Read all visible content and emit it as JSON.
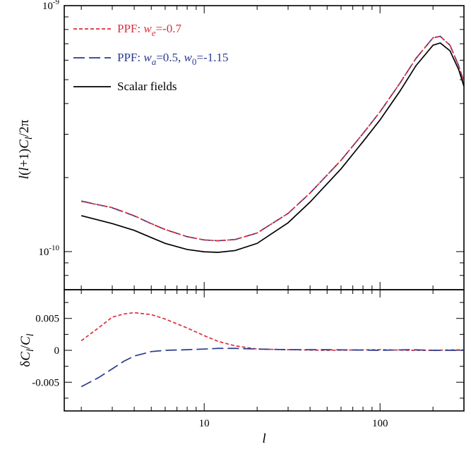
{
  "colors": {
    "ppf_we": "#dc2f3c",
    "ppf_wa_w0": "#2b3a8f",
    "scalar_fields": "#000000"
  },
  "chart_data": [
    {
      "type": "line",
      "xlabel": "l",
      "ylabel": "l(l+1)C_l/2π",
      "xscale": "log",
      "yscale": "log",
      "xlim": [
        1.6,
        300
      ],
      "ylim": [
        7e-11,
        1e-09
      ],
      "y_tick_labels": [
        {
          "value": 1e-09,
          "base": "10",
          "exp": "-9"
        },
        {
          "value": 1e-10,
          "base": "10",
          "exp": "-10"
        }
      ],
      "legend": {
        "placement": "top-left",
        "entries": [
          {
            "series": "ppf_we",
            "prefix": "PPF: ",
            "parts": [
              {
                "t": "w",
                "i": true
              },
              {
                "t": "e",
                "sub": true,
                "i": true
              },
              {
                "t": "=-0.7"
              }
            ]
          },
          {
            "series": "ppf_wa_w0",
            "prefix": "PPF: ",
            "parts": [
              {
                "t": "w",
                "i": true
              },
              {
                "t": "a",
                "sub": true,
                "i": true
              },
              {
                "t": "=0.5, "
              },
              {
                "t": "w",
                "i": true
              },
              {
                "t": "0",
                "sub": true
              },
              {
                "t": "=-1.15"
              }
            ]
          },
          {
            "series": "scalar_fields",
            "prefix": "Scalar fields",
            "parts": []
          }
        ]
      },
      "series": [
        {
          "key": "ppf_we",
          "name": "PPF: w_e=-0.7",
          "style": "short-dash",
          "points": [
            [
              2,
              1.6e-10
            ],
            [
              3,
              1.51e-10
            ],
            [
              4,
              1.4e-10
            ],
            [
              5,
              1.3e-10
            ],
            [
              6,
              1.23e-10
            ],
            [
              8,
              1.15e-10
            ],
            [
              10,
              1.115e-10
            ],
            [
              12,
              1.107e-10
            ],
            [
              15,
              1.12e-10
            ],
            [
              20,
              1.19e-10
            ],
            [
              30,
              1.43e-10
            ],
            [
              40,
              1.73e-10
            ],
            [
              60,
              2.35e-10
            ],
            [
              80,
              3.02e-10
            ],
            [
              100,
              3.7e-10
            ],
            [
              130,
              4.85e-10
            ],
            [
              160,
              6.1e-10
            ],
            [
              200,
              7.4e-10
            ],
            [
              220,
              7.5e-10
            ],
            [
              250,
              6.9e-10
            ],
            [
              280,
              5.7e-10
            ],
            [
              300,
              4.9e-10
            ]
          ]
        },
        {
          "key": "ppf_wa_w0",
          "name": "PPF: w_a=0.5, w_0=-1.15",
          "style": "long-dash",
          "points": [
            [
              2,
              1.605e-10
            ],
            [
              3,
              1.507e-10
            ],
            [
              4,
              1.397e-10
            ],
            [
              5,
              1.298e-10
            ],
            [
              6,
              1.229e-10
            ],
            [
              8,
              1.15e-10
            ],
            [
              10,
              1.115e-10
            ],
            [
              12,
              1.107e-10
            ],
            [
              15,
              1.12e-10
            ],
            [
              20,
              1.19e-10
            ],
            [
              30,
              1.43e-10
            ],
            [
              40,
              1.73e-10
            ],
            [
              60,
              2.35e-10
            ],
            [
              80,
              3.02e-10
            ],
            [
              100,
              3.7e-10
            ],
            [
              130,
              4.85e-10
            ],
            [
              160,
              6.1e-10
            ],
            [
              200,
              7.4e-10
            ],
            [
              220,
              7.5e-10
            ],
            [
              250,
              6.9e-10
            ],
            [
              280,
              5.7e-10
            ],
            [
              300,
              4.9e-10
            ]
          ]
        },
        {
          "key": "scalar_fields",
          "name": "Scalar fields",
          "style": "solid",
          "points": [
            [
              2,
              1.4e-10
            ],
            [
              3,
              1.3e-10
            ],
            [
              4,
              1.22e-10
            ],
            [
              5,
              1.14e-10
            ],
            [
              6,
              1.08e-10
            ],
            [
              8,
              1.02e-10
            ],
            [
              10,
              9.98e-11
            ],
            [
              12,
              9.93e-11
            ],
            [
              15,
              1.01e-10
            ],
            [
              20,
              1.08e-10
            ],
            [
              30,
              1.31e-10
            ],
            [
              40,
              1.59e-10
            ],
            [
              60,
              2.17e-10
            ],
            [
              80,
              2.8e-10
            ],
            [
              100,
              3.43e-10
            ],
            [
              130,
              4.5e-10
            ],
            [
              160,
              5.7e-10
            ],
            [
              200,
              6.9e-10
            ],
            [
              220,
              7.05e-10
            ],
            [
              250,
              6.55e-10
            ],
            [
              280,
              5.5e-10
            ],
            [
              300,
              4.7e-10
            ]
          ]
        }
      ]
    },
    {
      "type": "line",
      "xlabel": "l",
      "ylabel": "δC_l/C_l",
      "xscale": "log",
      "xlim": [
        1.6,
        300
      ],
      "ylim": [
        -0.0095,
        0.0095
      ],
      "y_ticks": [
        0.005,
        0,
        -0.005
      ],
      "y_tick_labels": [
        "0.005",
        "0",
        "-0.005"
      ],
      "x_ticks": [
        10,
        100
      ],
      "x_tick_labels": [
        "10",
        "100"
      ],
      "series": [
        {
          "key": "ppf_we",
          "name": "PPF: w_e=-0.7",
          "style": "short-dash",
          "points": [
            [
              2,
              0.0015
            ],
            [
              2.5,
              0.0035
            ],
            [
              3,
              0.0052
            ],
            [
              3.5,
              0.0057
            ],
            [
              4,
              0.0059
            ],
            [
              5,
              0.0056
            ],
            [
              6,
              0.0049
            ],
            [
              8,
              0.0035
            ],
            [
              10,
              0.0023
            ],
            [
              12,
              0.0014
            ],
            [
              15,
              0.0007
            ],
            [
              20,
              0.0002
            ],
            [
              30,
              0.0001
            ],
            [
              50,
              0.0
            ],
            [
              100,
              0.0001
            ],
            [
              150,
              0.0
            ],
            [
              200,
              0.0
            ],
            [
              300,
              0.0001
            ]
          ]
        },
        {
          "key": "ppf_wa_w0",
          "name": "PPF: w_a=0.5, w_0=-1.15",
          "style": "long-dash",
          "points": [
            [
              2,
              -0.0057
            ],
            [
              2.5,
              -0.0043
            ],
            [
              3,
              -0.0029
            ],
            [
              3.5,
              -0.0017
            ],
            [
              4,
              -0.0009
            ],
            [
              5,
              -0.0002
            ],
            [
              6,
              0.0
            ],
            [
              8,
              0.0001
            ],
            [
              10,
              0.0002
            ],
            [
              12,
              0.0003
            ],
            [
              15,
              0.0003
            ],
            [
              20,
              0.0002
            ],
            [
              30,
              0.0001
            ],
            [
              50,
              0.0001
            ],
            [
              100,
              0.0
            ],
            [
              150,
              0.0001
            ],
            [
              200,
              0.0
            ],
            [
              300,
              0.0
            ]
          ]
        }
      ]
    }
  ]
}
